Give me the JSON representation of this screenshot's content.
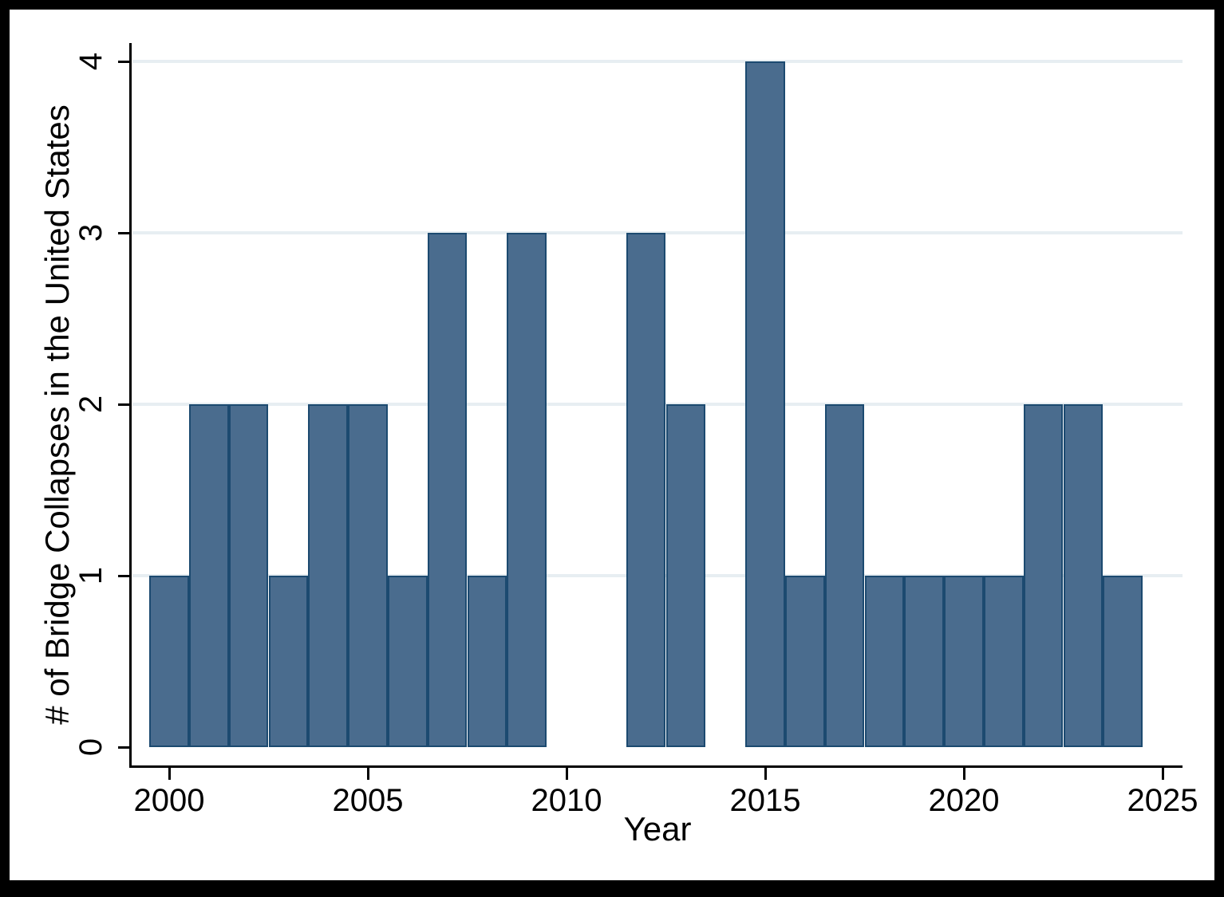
{
  "chart_data": {
    "type": "bar",
    "subtype": "histogram",
    "title": "",
    "xlabel": "Year",
    "ylabel": "# of Bridge Collapses in the United States",
    "categories": [
      2000,
      2001,
      2002,
      2003,
      2004,
      2005,
      2006,
      2007,
      2008,
      2009,
      2010,
      2011,
      2012,
      2013,
      2014,
      2015,
      2016,
      2017,
      2018,
      2019,
      2020,
      2021,
      2022,
      2023,
      2024
    ],
    "values": [
      1,
      2,
      2,
      1,
      2,
      2,
      1,
      3,
      1,
      3,
      0,
      0,
      3,
      2,
      0,
      4,
      1,
      2,
      1,
      1,
      1,
      1,
      2,
      2,
      1
    ],
    "bin_width": 1,
    "xlim": [
      1999.0,
      2025.5
    ],
    "ylim": [
      0,
      4
    ],
    "x_tick_values": [
      2000,
      2005,
      2010,
      2015,
      2020,
      2025
    ],
    "x_tick_labels": [
      "2000",
      "2005",
      "2010",
      "2015",
      "2020",
      "2025"
    ],
    "y_tick_values": [
      0,
      1,
      2,
      3,
      4
    ],
    "y_tick_labels": [
      "0",
      "1",
      "2",
      "3",
      "4"
    ],
    "grid_y_values": [
      1,
      2,
      3,
      4
    ],
    "legend": "none",
    "colors": {
      "bar_fill": "#4A6C8E",
      "bar_border": "#1C4A70",
      "grid": "#E7EEF2",
      "axis": "#000000",
      "text": "#000000",
      "frame": "#000000",
      "background": "#FFFFFF"
    }
  }
}
